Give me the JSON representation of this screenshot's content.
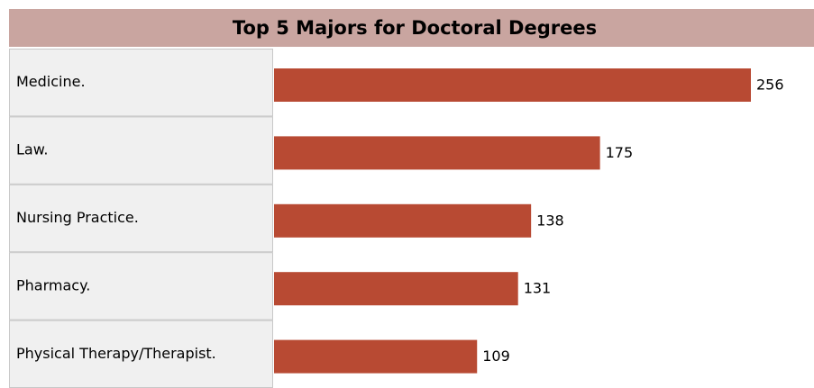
{
  "chart_data": {
    "type": "bar",
    "orientation": "horizontal",
    "title": "Top 5 Majors for Doctoral Degrees",
    "categories": [
      "Medicine.",
      "Law.",
      "Nursing Practice.",
      "Pharmacy.",
      "Physical Therapy/Therapist."
    ],
    "values": [
      256,
      175,
      138,
      131,
      109
    ],
    "color": "#b84a33"
  }
}
